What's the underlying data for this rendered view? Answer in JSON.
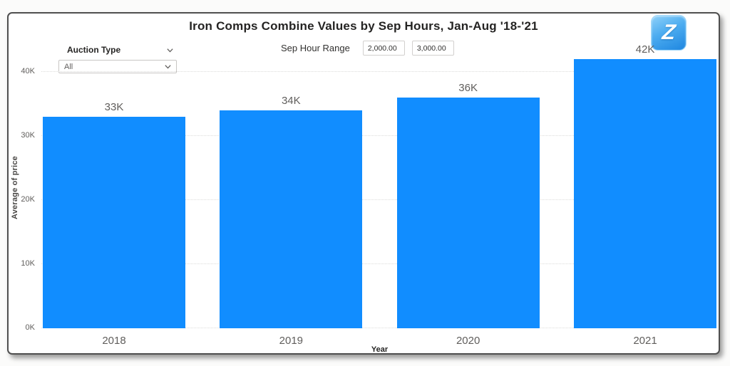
{
  "logo": {
    "letter": "Z"
  },
  "filters": {
    "auction_type": {
      "label": "Auction Type",
      "value": "All"
    },
    "sep_hour_range": {
      "label": "Sep Hour Range",
      "min": "2,000.00",
      "max": "3,000.00"
    }
  },
  "chart_data": {
    "type": "bar",
    "title": "Iron Comps Combine Values by Sep Hours, Jan-Aug '18-'21",
    "categories": [
      "2018",
      "2019",
      "2020",
      "2021"
    ],
    "values": [
      33000,
      34000,
      36000,
      42000
    ],
    "data_labels": [
      "33K",
      "34K",
      "36K",
      "42K"
    ],
    "xlabel": "Year",
    "ylabel": "Average of price",
    "ylim": [
      0,
      42000
    ],
    "yticks": [
      {
        "label": "0K",
        "value": 0
      },
      {
        "label": "10K",
        "value": 10000
      },
      {
        "label": "20K",
        "value": 20000
      },
      {
        "label": "30K",
        "value": 30000
      },
      {
        "label": "40K",
        "value": 40000
      }
    ],
    "grid": "dotted-horizontal",
    "legend": "none",
    "bar_color": "#118DFF"
  }
}
